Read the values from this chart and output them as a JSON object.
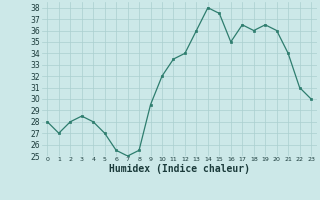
{
  "x": [
    0,
    1,
    2,
    3,
    4,
    5,
    6,
    7,
    8,
    9,
    10,
    11,
    12,
    13,
    14,
    15,
    16,
    17,
    18,
    19,
    20,
    21,
    22,
    23
  ],
  "y": [
    28,
    27,
    28,
    28.5,
    28,
    27,
    25.5,
    25,
    25.5,
    29.5,
    32,
    33.5,
    34,
    36,
    38,
    37.5,
    35,
    36.5,
    36,
    36.5,
    36,
    34,
    31,
    30
  ],
  "line_color": "#2e7d6e",
  "marker_color": "#2e7d6e",
  "bg_color": "#cce8e8",
  "grid_color": "#aacfcf",
  "xlabel": "Humidex (Indice chaleur)",
  "xlim": [
    -0.5,
    23.5
  ],
  "ylim": [
    25,
    38.5
  ],
  "yticks": [
    25,
    26,
    27,
    28,
    29,
    30,
    31,
    32,
    33,
    34,
    35,
    36,
    37,
    38
  ],
  "xticks": [
    0,
    1,
    2,
    3,
    4,
    5,
    6,
    7,
    8,
    9,
    10,
    11,
    12,
    13,
    14,
    15,
    16,
    17,
    18,
    19,
    20,
    21,
    22,
    23
  ],
  "tick_color": "#1a3a3a",
  "xlabel_fontsize": 7,
  "ytick_fontsize": 5.5,
  "xtick_fontsize": 4.5
}
